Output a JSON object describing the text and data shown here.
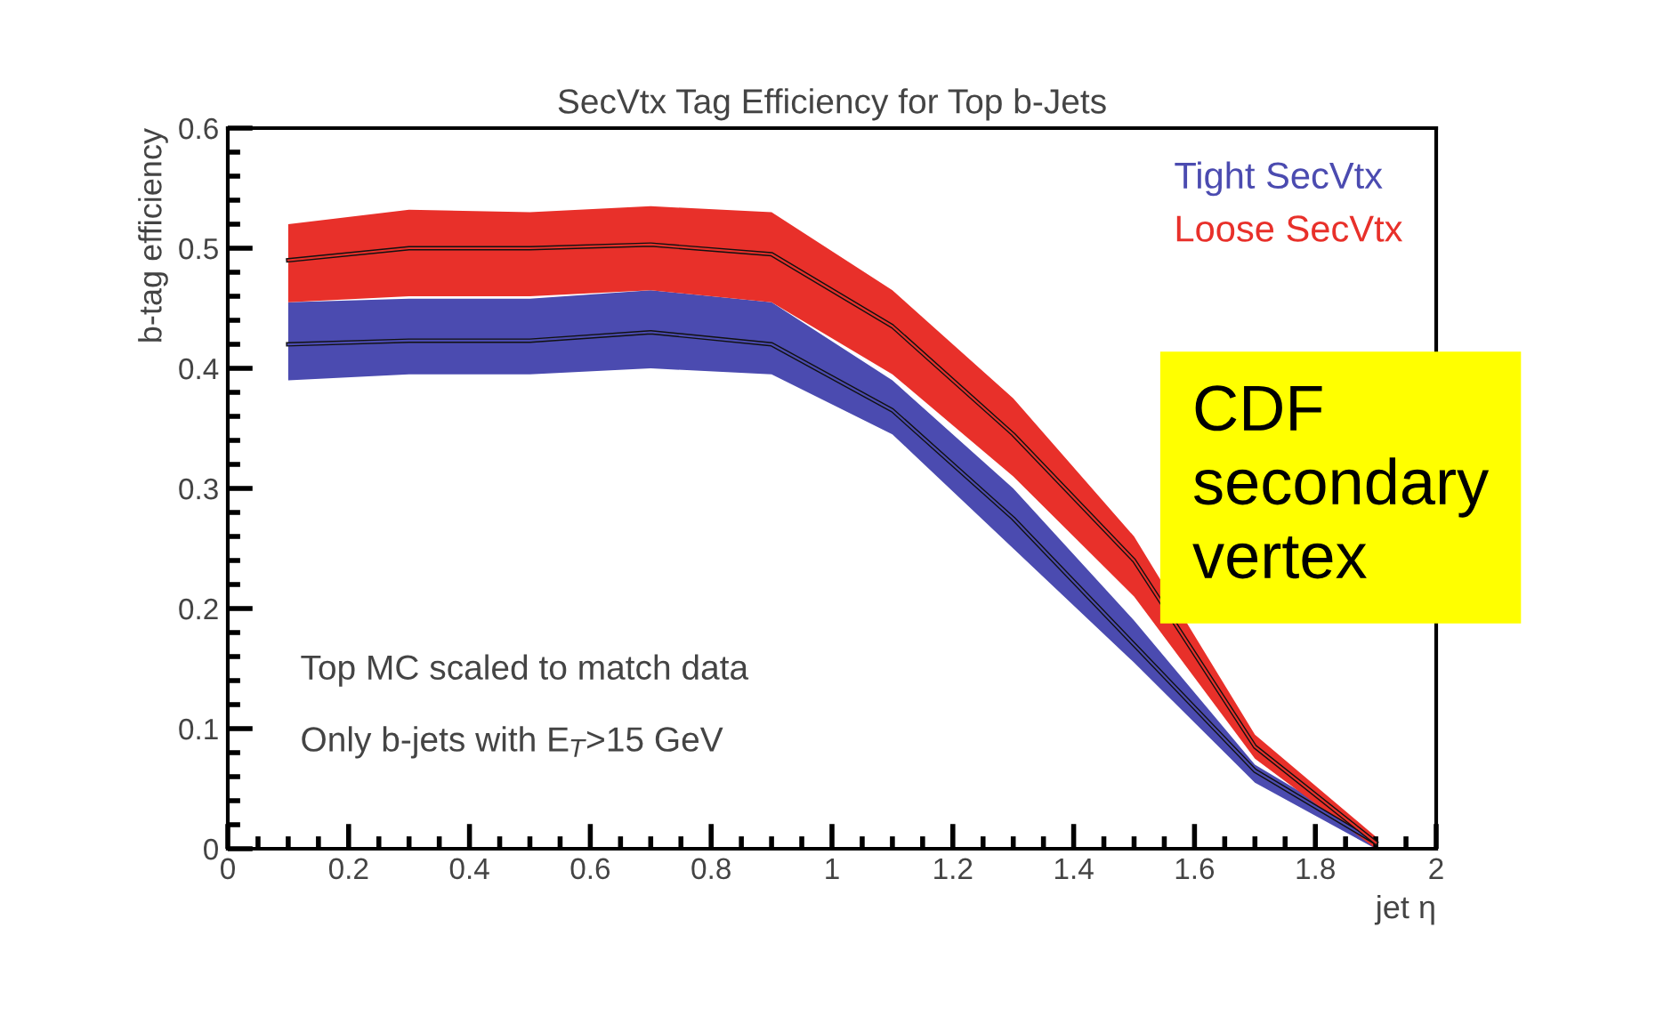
{
  "chart_data": {
    "type": "line",
    "title": "SecVtx Tag Efficiency for Top b-Jets",
    "xlabel": "jet η",
    "ylabel": "b-tag efficiency",
    "x": [
      0.1,
      0.3,
      0.5,
      0.7,
      0.9,
      1.1,
      1.3,
      1.5,
      1.7,
      1.9
    ],
    "series": [
      {
        "name": "Tight SecVtx",
        "color": "#4b4bb0",
        "values": [
          0.42,
          0.423,
          0.423,
          0.43,
          0.42,
          0.365,
          0.275,
          0.17,
          0.065,
          0.005
        ],
        "lower": [
          0.39,
          0.395,
          0.395,
          0.4,
          0.395,
          0.345,
          0.25,
          0.155,
          0.055,
          0.0
        ],
        "upper": [
          0.455,
          0.458,
          0.458,
          0.465,
          0.455,
          0.39,
          0.3,
          0.19,
          0.07,
          0.01
        ]
      },
      {
        "name": "Loose SecVtx",
        "color": "#e8302a",
        "values": [
          0.49,
          0.5,
          0.5,
          0.503,
          0.495,
          0.435,
          0.345,
          0.24,
          0.085,
          0.005
        ],
        "lower": [
          0.455,
          0.46,
          0.46,
          0.465,
          0.455,
          0.395,
          0.31,
          0.21,
          0.075,
          0.0
        ],
        "upper": [
          0.52,
          0.532,
          0.53,
          0.535,
          0.53,
          0.465,
          0.375,
          0.26,
          0.095,
          0.01
        ]
      }
    ],
    "xlim": [
      0,
      2
    ],
    "ylim": [
      0,
      0.6
    ],
    "xticks": [
      0,
      0.2,
      0.4,
      0.6,
      0.8,
      1,
      1.2,
      1.4,
      1.6,
      1.8,
      2
    ],
    "yticks": [
      0,
      0.1,
      0.2,
      0.3,
      0.4,
      0.5,
      0.6
    ],
    "grid": false,
    "legend": "top right",
    "marker": "none",
    "line_style": "solid",
    "annotations": [
      "Top MC scaled to match data",
      "Only b-jets with E$_{T}$>15 GeV",
      "CDF\nsecondary\nvertex"
    ]
  }
}
